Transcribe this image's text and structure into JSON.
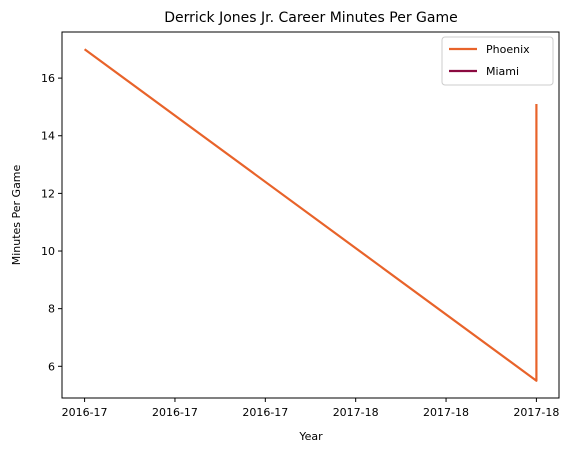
{
  "chart_data": {
    "type": "line",
    "title": "Derrick Jones Jr. Career Minutes Per Game",
    "xlabel": "Year",
    "ylabel": "Minutes Per Game",
    "x_ticks": [
      {
        "value": 0,
        "label": "2016-17"
      },
      {
        "value": 1,
        "label": "2016-17"
      },
      {
        "value": 2,
        "label": "2016-17"
      },
      {
        "value": 3,
        "label": "2017-18"
      },
      {
        "value": 4,
        "label": "2017-18"
      },
      {
        "value": 5,
        "label": "2017-18"
      }
    ],
    "xlim": [
      -0.25,
      5.25
    ],
    "ylim": [
      4.9,
      17.6
    ],
    "y_ticks": [
      6,
      8,
      10,
      12,
      14,
      16
    ],
    "grid": false,
    "legend_position": "top-right",
    "series": [
      {
        "name": "Phoenix",
        "color": "#e8632a",
        "points": [
          {
            "x": 0,
            "y": 17.0
          },
          {
            "x": 5,
            "y": 5.5
          },
          {
            "x": 5,
            "y": 15.1
          }
        ]
      },
      {
        "name": "Miami",
        "color": "#8b0a40",
        "points": []
      }
    ]
  }
}
